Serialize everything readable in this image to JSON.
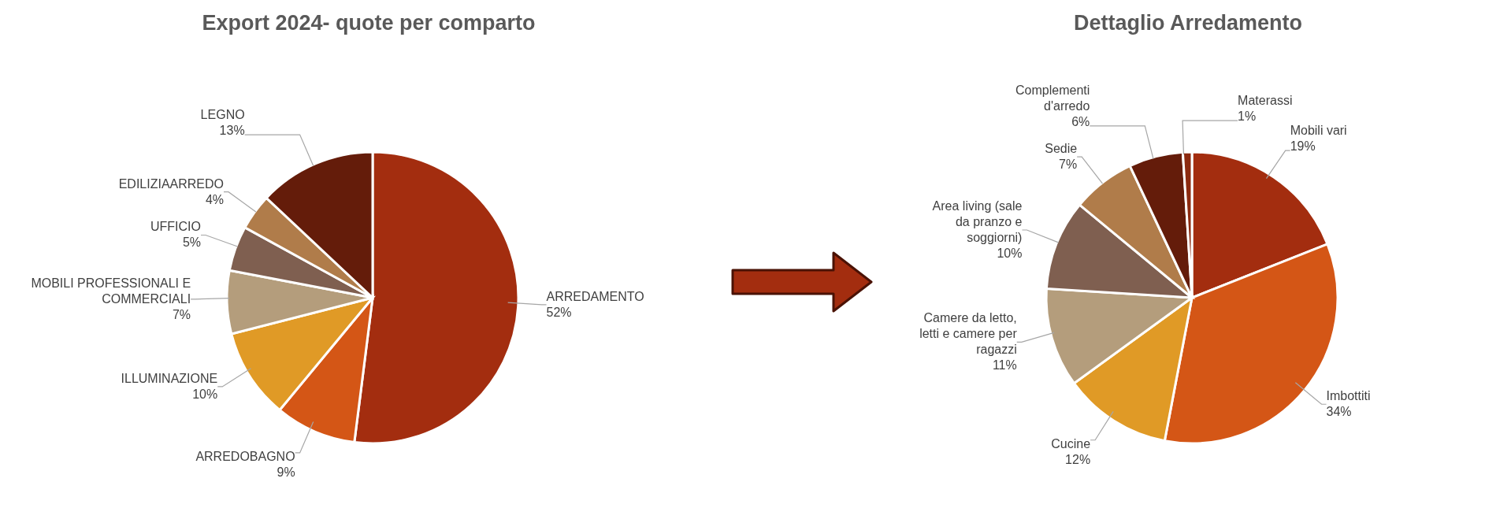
{
  "chart_data": [
    {
      "type": "pie",
      "title": "Export 2024- quote per comparto",
      "categories": [
        "ARREDAMENTO",
        "ARREDOBAGNO",
        "ILLUMINAZIONE",
        "MOBILI PROFESSIONALI E COMMERCIALI",
        "UFFICIO",
        "EDILIZIAARREDO",
        "LEGNO"
      ],
      "values": [
        52,
        9,
        10,
        7,
        5,
        4,
        13
      ],
      "value_labels": [
        "52%",
        "9%",
        "10%",
        "7%",
        "5%",
        "4%",
        "13%"
      ],
      "colors": [
        "#a32d0f",
        "#d45616",
        "#e09a26",
        "#b49d7c",
        "#7f5f50",
        "#b07c4a",
        "#641c0a"
      ],
      "legend": false
    },
    {
      "type": "pie",
      "title": "Dettaglio Arredamento",
      "categories": [
        "Mobili vari",
        "Imbottiti",
        "Cucine",
        "Camere da letto, letti e camere per ragazzi",
        "Area living (sale da pranzo e soggiorni)",
        "Sedie",
        "Complementi d'arredo",
        "Materassi"
      ],
      "values": [
        19,
        34,
        12,
        11,
        10,
        7,
        6,
        1
      ],
      "value_labels": [
        "19%",
        "34%",
        "12%",
        "11%",
        "10%",
        "7%",
        "6%",
        "1%"
      ],
      "colors": [
        "#a32d0f",
        "#d45616",
        "#e09a26",
        "#b49d7c",
        "#7f5f50",
        "#b07c4a",
        "#641c0a",
        "#8c2a10"
      ],
      "legend": false
    }
  ]
}
